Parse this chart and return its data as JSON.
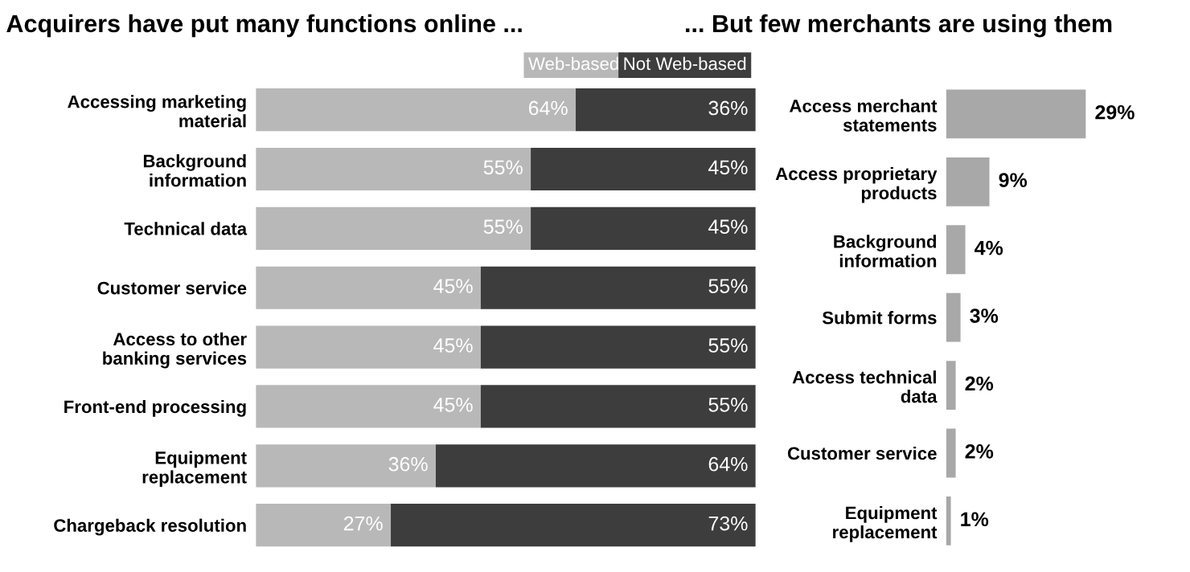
{
  "chart_data": [
    {
      "type": "bar",
      "orientation": "horizontal",
      "stacked": true,
      "title": "Acquirers have put many functions online ...",
      "legend": "top right",
      "categories": [
        "Accessing marketing\nmaterial",
        "Background\ninformation",
        "Technical data",
        "Customer service",
        "Access to other\nbanking services",
        "Front-end processing",
        "Equipment\nreplacement",
        "Chargeback resolution"
      ],
      "series": [
        {
          "name": "Web-based",
          "color": "#b8b8b8",
          "values": [
            64,
            55,
            55,
            45,
            45,
            45,
            36,
            27
          ],
          "value_labels": [
            "64%",
            "55%",
            "55%",
            "45%",
            "45%",
            "45%",
            "36%",
            "27%"
          ]
        },
        {
          "name": "Not Web-based",
          "color": "#3d3d3d",
          "values": [
            36,
            45,
            45,
            55,
            55,
            55,
            64,
            73
          ],
          "value_labels": [
            "36%",
            "45%",
            "45%",
            "55%",
            "55%",
            "55%",
            "64%",
            "73%"
          ]
        }
      ]
    },
    {
      "type": "bar",
      "orientation": "horizontal",
      "title": "... But few merchants are using them",
      "categories": [
        "Access merchant\nstatements",
        "Access proprietary\nproducts",
        "Background\ninformation",
        "Submit forms",
        "Access technical\ndata",
        "Customer service",
        "Equipment\nreplacement"
      ],
      "series": [
        {
          "color": "#a8a8a8",
          "values": [
            29,
            9,
            4,
            3,
            2,
            2,
            1
          ],
          "value_labels": [
            "29%",
            "9%",
            "4%",
            "3%",
            "2%",
            "2%",
            "1%"
          ]
        }
      ]
    }
  ]
}
